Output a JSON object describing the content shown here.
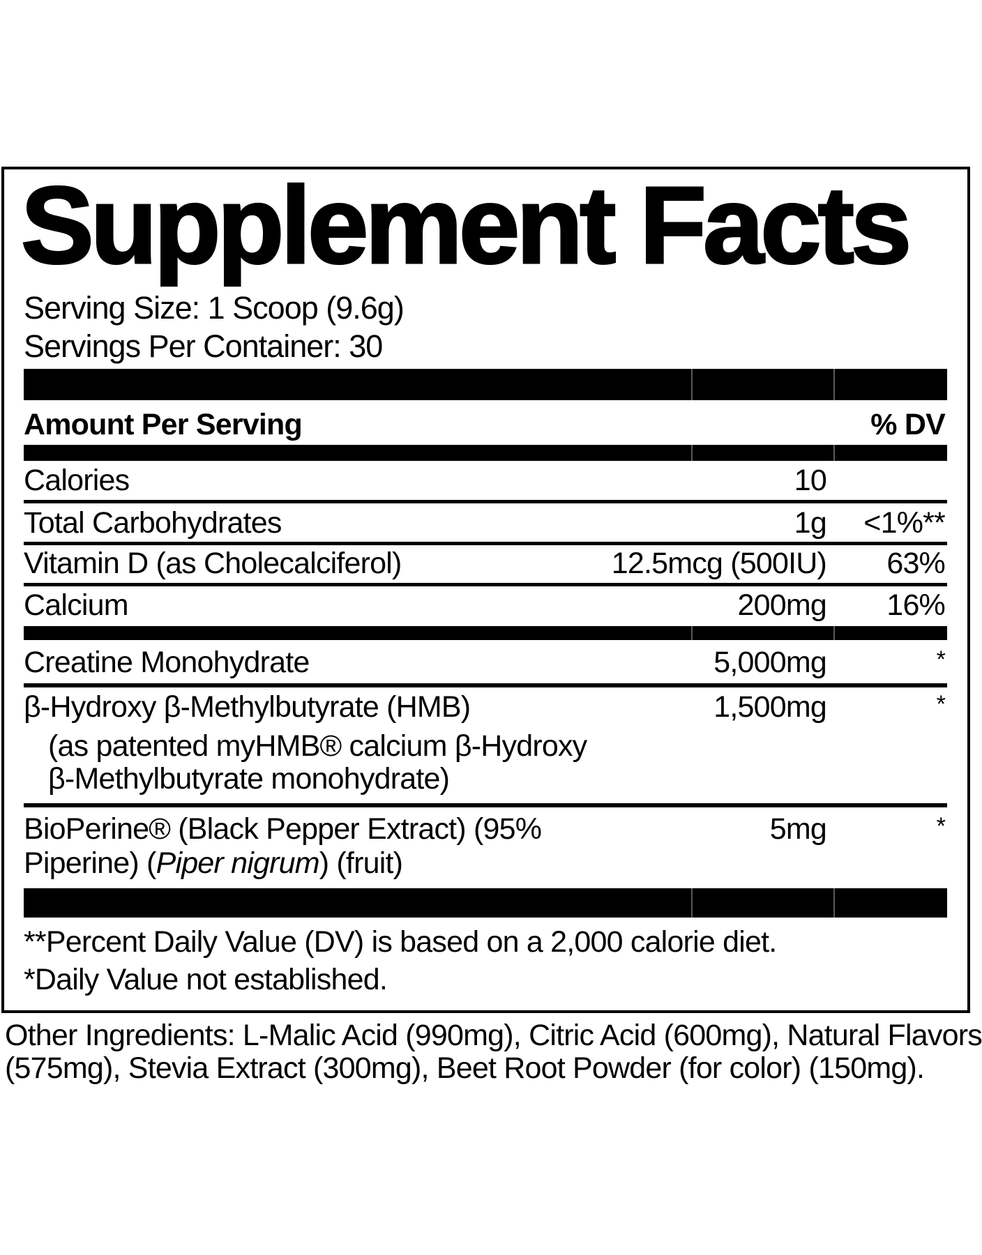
{
  "title": "Supplement Facts",
  "serving_size": "Serving Size: 1 Scoop (9.6g)",
  "servings_per_container": "Servings Per Container: 30",
  "header": {
    "amount_label": "Amount Per Serving",
    "dv_label": "% DV"
  },
  "rows": [
    {
      "name": "Calories",
      "amount": "10",
      "dv": ""
    },
    {
      "name": "Total Carbohydrates",
      "amount": "1g",
      "dv": "<1%**"
    },
    {
      "name": "Vitamin D (as Cholecalciferol)",
      "amount": "12.5mcg (500IU)",
      "dv": "63%"
    },
    {
      "name": "Calcium",
      "amount": "200mg",
      "dv": "16%"
    },
    {
      "name": "Creatine Monohydrate",
      "amount": "5,000mg",
      "dv": "*"
    },
    {
      "name": "β-Hydroxy β-Methylbutyrate (HMB)",
      "sub1": "(as patented myHMB® calcium β-Hydroxy",
      "sub2": "β-Methylbutyrate monohydrate)",
      "amount": "1,500mg",
      "dv": "*"
    },
    {
      "name": "BioPerine® (Black Pepper Extract) (95%",
      "line2_a": "Piperine) (",
      "line2_italic": "Piper nigrum",
      "line2_b": ") (fruit)",
      "amount": "5mg",
      "dv": "*"
    }
  ],
  "footnotes": [
    "**Percent Daily Value (DV) is based on a 2,000 calorie diet.",
    "*Daily Value not established."
  ],
  "other_ingredients": [
    "Other Ingredients: L-Malic Acid (990mg), Citric Acid (600mg), Natural Flavors",
    "(575mg), Stevia Extract (300mg), Beet Root Powder (for color) (150mg)."
  ]
}
